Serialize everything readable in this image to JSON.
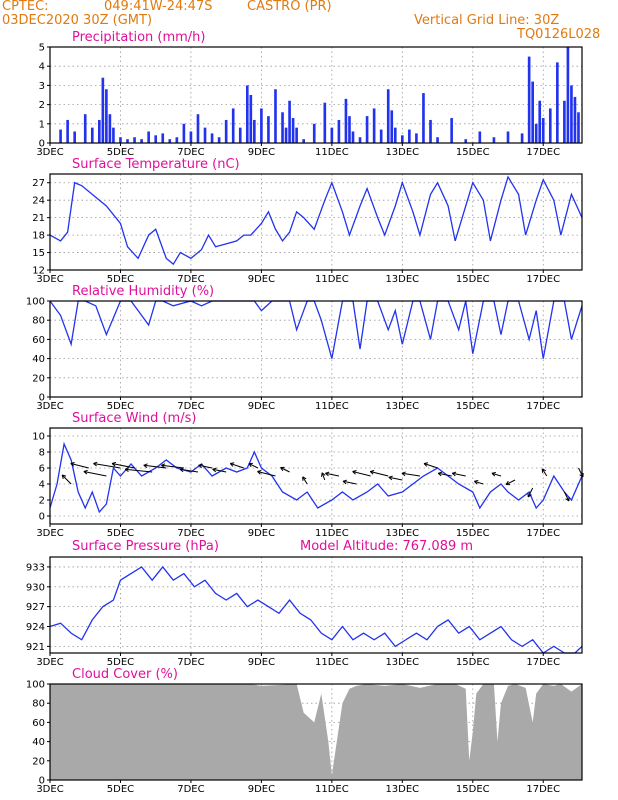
{
  "header": {
    "source": "CPTEC:",
    "location_coords": "049:41W-24:47S",
    "location_name": "CASTRO (PR)",
    "run_date": "03DEC2020 30Z (GMT)",
    "grid_note": "Vertical Grid Line: 30Z",
    "grid_code": "TQ0126L028"
  },
  "colors": {
    "header": "#e07a10",
    "title": "#e0109a",
    "series": "#2233ee",
    "cloud": "#a9a9a9"
  },
  "x_axis": {
    "start_label": "3DEC",
    "ticks": [
      "3DEC",
      "5DEC",
      "7DEC",
      "9DEC",
      "11DEC",
      "13DEC",
      "15DEC",
      "17DEC"
    ],
    "tick_days": [
      3,
      5,
      7,
      9,
      11,
      13,
      15,
      17
    ],
    "range_days": [
      3,
      18.1
    ]
  },
  "chart_data": [
    {
      "id": "precip",
      "type": "bar",
      "title": "Precipitation (mm/h)",
      "ylim": [
        0,
        5
      ],
      "yticks": [
        0,
        1,
        2,
        3,
        4,
        5
      ],
      "x": [
        3.3,
        3.5,
        3.7,
        4.0,
        4.2,
        4.4,
        4.5,
        4.6,
        4.7,
        4.8,
        5.0,
        5.2,
        5.4,
        5.6,
        5.8,
        6.0,
        6.2,
        6.4,
        6.6,
        6.8,
        7.0,
        7.2,
        7.4,
        7.6,
        7.8,
        8.0,
        8.2,
        8.4,
        8.6,
        8.7,
        8.8,
        9.0,
        9.2,
        9.4,
        9.6,
        9.7,
        9.8,
        9.9,
        10.0,
        10.2,
        10.5,
        10.8,
        11.0,
        11.2,
        11.4,
        11.5,
        11.6,
        11.8,
        12.0,
        12.2,
        12.4,
        12.6,
        12.7,
        12.8,
        13.0,
        13.2,
        13.4,
        13.6,
        13.8,
        14.0,
        14.4,
        14.8,
        15.2,
        15.6,
        16.0,
        16.4,
        16.6,
        16.7,
        16.8,
        16.9,
        17.0,
        17.2,
        17.4,
        17.6,
        17.7,
        17.8,
        17.9,
        18.0
      ],
      "values": [
        0.7,
        1.2,
        0.6,
        1.5,
        0.8,
        1.2,
        3.4,
        2.8,
        1.5,
        0.8,
        0.3,
        0.2,
        0.3,
        0.2,
        0.6,
        0.4,
        0.5,
        0.2,
        0.3,
        1.0,
        0.6,
        1.5,
        0.8,
        0.5,
        0.3,
        1.2,
        1.8,
        0.8,
        3.0,
        2.5,
        1.2,
        1.8,
        1.4,
        2.8,
        1.6,
        0.8,
        2.2,
        1.3,
        0.8,
        0.2,
        1.0,
        2.1,
        0.8,
        1.2,
        2.3,
        1.4,
        0.6,
        0.3,
        1.4,
        1.8,
        0.7,
        2.8,
        1.7,
        0.8,
        0.4,
        0.7,
        0.5,
        2.6,
        1.2,
        0.3,
        1.3,
        0.2,
        0.6,
        0.3,
        0.6,
        0.5,
        4.5,
        3.2,
        1.0,
        2.2,
        1.3,
        1.8,
        4.2,
        2.2,
        5.0,
        3.0,
        2.4,
        1.6
      ]
    },
    {
      "id": "temp",
      "type": "line",
      "title": "Surface Temperature (nC)",
      "ylim": [
        12,
        28.5
      ],
      "yticks": [
        12,
        15,
        18,
        21,
        24,
        27
      ],
      "x": [
        3.0,
        3.3,
        3.5,
        3.7,
        3.9,
        4.2,
        4.6,
        5.0,
        5.2,
        5.5,
        5.8,
        6.0,
        6.3,
        6.5,
        6.7,
        7.0,
        7.3,
        7.5,
        7.7,
        8.0,
        8.3,
        8.5,
        8.7,
        9.0,
        9.2,
        9.4,
        9.6,
        9.8,
        10.0,
        10.2,
        10.5,
        10.8,
        11.0,
        11.3,
        11.5,
        11.8,
        12.0,
        12.3,
        12.5,
        12.8,
        13.0,
        13.3,
        13.5,
        13.8,
        14.0,
        14.3,
        14.5,
        14.8,
        15.0,
        15.3,
        15.5,
        15.8,
        16.0,
        16.3,
        16.5,
        16.8,
        17.0,
        17.3,
        17.5,
        17.8,
        18.1
      ],
      "values": [
        18,
        17,
        18.5,
        27,
        26.5,
        25,
        23,
        20,
        16,
        14,
        18,
        19,
        14,
        13,
        15,
        14,
        15.5,
        18,
        16,
        16.5,
        17,
        18,
        18,
        20,
        22,
        19,
        17,
        18.5,
        22,
        21,
        19,
        24,
        27,
        22,
        18,
        23,
        26,
        21,
        18,
        23,
        27,
        22,
        18,
        25,
        27,
        23,
        17,
        23,
        27,
        24,
        17,
        24,
        28,
        25,
        18,
        24,
        27.5,
        24,
        18,
        25,
        21
      ]
    },
    {
      "id": "rh",
      "type": "line",
      "title": "Relative Humidity (%)",
      "ylim": [
        0,
        100
      ],
      "yticks": [
        0,
        20,
        40,
        60,
        80,
        100
      ],
      "x": [
        3.0,
        3.3,
        3.6,
        3.8,
        4.0,
        4.3,
        4.6,
        5.0,
        5.3,
        5.6,
        5.8,
        6.0,
        6.2,
        6.5,
        6.8,
        7.0,
        7.3,
        7.6,
        8.0,
        8.5,
        8.8,
        9.0,
        9.3,
        9.5,
        9.8,
        10.0,
        10.3,
        10.5,
        10.7,
        11.0,
        11.3,
        11.6,
        11.8,
        12.0,
        12.3,
        12.6,
        12.8,
        13.0,
        13.3,
        13.5,
        13.8,
        14.0,
        14.3,
        14.6,
        14.8,
        15.0,
        15.3,
        15.6,
        15.8,
        16.0,
        16.3,
        16.6,
        16.8,
        17.0,
        17.3,
        17.6,
        17.8,
        18.1
      ],
      "values": [
        100,
        85,
        55,
        100,
        100,
        95,
        65,
        100,
        100,
        85,
        75,
        100,
        100,
        95,
        98,
        100,
        95,
        100,
        100,
        100,
        100,
        90,
        100,
        100,
        100,
        70,
        100,
        100,
        80,
        40,
        100,
        100,
        50,
        100,
        100,
        70,
        90,
        55,
        100,
        100,
        60,
        100,
        100,
        70,
        100,
        45,
        100,
        100,
        65,
        100,
        100,
        60,
        90,
        40,
        100,
        100,
        60,
        95
      ]
    },
    {
      "id": "wind",
      "type": "line",
      "title": "Surface Wind (m/s)",
      "ylim": [
        -1,
        11
      ],
      "yticks": [
        0,
        2,
        4,
        6,
        8,
        10
      ],
      "x": [
        3.0,
        3.2,
        3.4,
        3.6,
        3.8,
        4.0,
        4.2,
        4.4,
        4.6,
        4.8,
        5.0,
        5.3,
        5.6,
        6.0,
        6.3,
        6.6,
        7.0,
        7.3,
        7.6,
        8.0,
        8.3,
        8.6,
        8.8,
        9.0,
        9.3,
        9.6,
        10.0,
        10.3,
        10.6,
        11.0,
        11.3,
        11.6,
        12.0,
        12.3,
        12.6,
        13.0,
        13.3,
        13.6,
        14.0,
        14.3,
        14.6,
        15.0,
        15.2,
        15.5,
        15.8,
        16.0,
        16.3,
        16.6,
        16.8,
        17.0,
        17.3,
        17.6,
        17.8,
        18.1
      ],
      "values": [
        1,
        4,
        9,
        7,
        3,
        1,
        3,
        0.5,
        1.5,
        6,
        5,
        6.5,
        5,
        6,
        7,
        6,
        5.5,
        6.5,
        5,
        6,
        5.5,
        6,
        8,
        6,
        5,
        3,
        2,
        3,
        1,
        2,
        3,
        2,
        3,
        4,
        2.5,
        3,
        4,
        5,
        6,
        5,
        4,
        3,
        1,
        3,
        4,
        3,
        2,
        3,
        1,
        2,
        5,
        3,
        2,
        5
      ]
    },
    {
      "id": "wind_vectors",
      "type": "scatter",
      "title": "",
      "x": [
        3.6,
        4.1,
        4.6,
        5.0,
        5.4,
        5.9,
        6.3,
        6.8,
        7.2,
        7.6,
        8.0,
        8.5,
        8.9,
        9.4,
        9.8,
        10.3,
        10.8,
        11.2,
        11.7,
        12.1,
        12.6,
        13.0,
        13.5,
        14.0,
        14.4,
        14.8,
        15.3,
        15.8,
        16.2,
        16.7,
        17.1,
        17.6,
        18.0
      ],
      "y": [
        4,
        6,
        5,
        6,
        6,
        5.5,
        6,
        6,
        5.5,
        6,
        5.5,
        6,
        6,
        5,
        5.5,
        4,
        4.5,
        5,
        4,
        5,
        5,
        4.5,
        5,
        6,
        5,
        5,
        4,
        5,
        4.5,
        3.5,
        5,
        3,
        6
      ],
      "u": [
        -1.0,
        -2.0,
        -2.5,
        -3.0,
        -2.5,
        -3.0,
        -2.5,
        -2.5,
        -2.0,
        -1.5,
        -1.5,
        -1.5,
        -1.0,
        -2.0,
        -1.0,
        -0.5,
        -0.3,
        -1.5,
        -1.5,
        -2.0,
        -2.0,
        -1.5,
        -2.0,
        -1.5,
        -1.5,
        -1.5,
        -1.0,
        -1.0,
        -1.0,
        -0.5,
        -0.5,
        0.5,
        0.5
      ],
      "v": [
        1.0,
        0.5,
        0.5,
        0.5,
        0.5,
        0.3,
        0.3,
        0.3,
        0.3,
        0.3,
        0.3,
        0.5,
        0.5,
        0.5,
        0.5,
        0.8,
        0.8,
        0.3,
        0.3,
        0.5,
        0.5,
        0.3,
        0.3,
        0.5,
        0.3,
        0.3,
        0.3,
        0.3,
        -0.5,
        -1.0,
        0.8,
        -1.0,
        -1.0
      ]
    },
    {
      "id": "pres",
      "type": "line",
      "title": "Surface Pressure (hPa)",
      "subtitle": "Model Altitude: 767.089 m",
      "ylim": [
        920,
        934.5
      ],
      "yticks": [
        921,
        924,
        927,
        930,
        933
      ],
      "x": [
        3.0,
        3.3,
        3.6,
        3.9,
        4.2,
        4.5,
        4.8,
        5.0,
        5.3,
        5.6,
        5.9,
        6.2,
        6.5,
        6.8,
        7.1,
        7.4,
        7.7,
        8.0,
        8.3,
        8.6,
        8.9,
        9.2,
        9.5,
        9.8,
        10.1,
        10.4,
        10.7,
        11.0,
        11.3,
        11.6,
        11.9,
        12.2,
        12.5,
        12.8,
        13.1,
        13.4,
        13.7,
        14.0,
        14.3,
        14.6,
        14.9,
        15.2,
        15.5,
        15.8,
        16.1,
        16.4,
        16.7,
        17.0,
        17.3,
        17.6,
        17.9,
        18.1
      ],
      "values": [
        924,
        924.5,
        923,
        922,
        925,
        927,
        928,
        931,
        932,
        933,
        931,
        933,
        931,
        932,
        930,
        931,
        929,
        928,
        929,
        927,
        928,
        927,
        926,
        928,
        926,
        925,
        923,
        922,
        924,
        922,
        923,
        922,
        923,
        921,
        922,
        923,
        922,
        924,
        925,
        923,
        924,
        922,
        923,
        924,
        922,
        921,
        922,
        920,
        921,
        920,
        920,
        921
      ]
    },
    {
      "id": "cloud",
      "type": "area",
      "title": "Cloud Cover (%)",
      "ylim": [
        0,
        100
      ],
      "yticks": [
        0,
        20,
        40,
        60,
        80,
        100
      ],
      "x": [
        3.0,
        8.6,
        8.7,
        9.0,
        10.0,
        10.2,
        10.5,
        10.7,
        10.9,
        11.0,
        11.1,
        11.3,
        11.5,
        11.7,
        12.0,
        12.5,
        13.0,
        13.5,
        14.0,
        14.5,
        14.8,
        14.9,
        15.0,
        15.1,
        15.3,
        15.6,
        15.7,
        15.8,
        16.0,
        16.2,
        16.5,
        16.7,
        16.8,
        17.0,
        17.3,
        17.5,
        17.8,
        18.1
      ],
      "values": [
        100,
        100,
        100,
        98,
        100,
        70,
        60,
        90,
        40,
        5,
        30,
        80,
        95,
        98,
        100,
        98,
        100,
        96,
        100,
        100,
        95,
        20,
        50,
        90,
        100,
        100,
        40,
        80,
        98,
        100,
        96,
        60,
        90,
        100,
        98,
        100,
        92,
        100
      ]
    }
  ]
}
